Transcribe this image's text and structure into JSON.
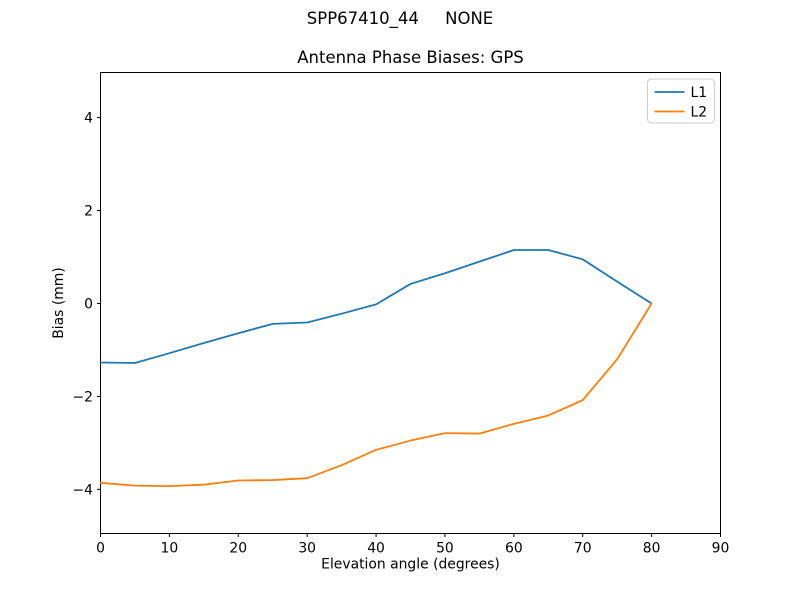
{
  "figure": {
    "suptitle": "SPP67410_44     NONE",
    "background": "#ffffff"
  },
  "chart_data": {
    "type": "line",
    "title": "Antenna Phase Biases: GPS",
    "xlabel": "Elevation angle (degrees)",
    "ylabel": "Bias (mm)",
    "xlim": [
      0,
      90
    ],
    "ylim": [
      -4.95,
      4.97
    ],
    "xticks": [
      0,
      10,
      20,
      30,
      40,
      50,
      60,
      70,
      80,
      90
    ],
    "yticks": [
      -4,
      -2,
      0,
      2,
      4
    ],
    "grid": false,
    "spine_color": "#000000",
    "legend": {
      "position": "upper right",
      "border_color": "#cccccc",
      "background": "#ffffff",
      "entries": [
        "L1",
        "L2"
      ]
    },
    "x": [
      0,
      5,
      10,
      15,
      20,
      25,
      30,
      35,
      40,
      45,
      50,
      55,
      60,
      65,
      70,
      75,
      80
    ],
    "series": [
      {
        "name": "L1",
        "color": "#1f77b4",
        "values": [
          -1.27,
          -1.28,
          -1.07,
          -0.85,
          -0.64,
          -0.44,
          -0.41,
          -0.22,
          -0.02,
          0.42,
          0.65,
          0.9,
          1.15,
          1.15,
          0.95,
          0.47,
          0.0
        ]
      },
      {
        "name": "L2",
        "color": "#ff7f0e",
        "values": [
          -3.86,
          -3.92,
          -3.93,
          -3.9,
          -3.81,
          -3.8,
          -3.76,
          -3.48,
          -3.15,
          -2.95,
          -2.79,
          -2.8,
          -2.59,
          -2.41,
          -2.08,
          -1.2,
          0.0
        ]
      }
    ]
  }
}
